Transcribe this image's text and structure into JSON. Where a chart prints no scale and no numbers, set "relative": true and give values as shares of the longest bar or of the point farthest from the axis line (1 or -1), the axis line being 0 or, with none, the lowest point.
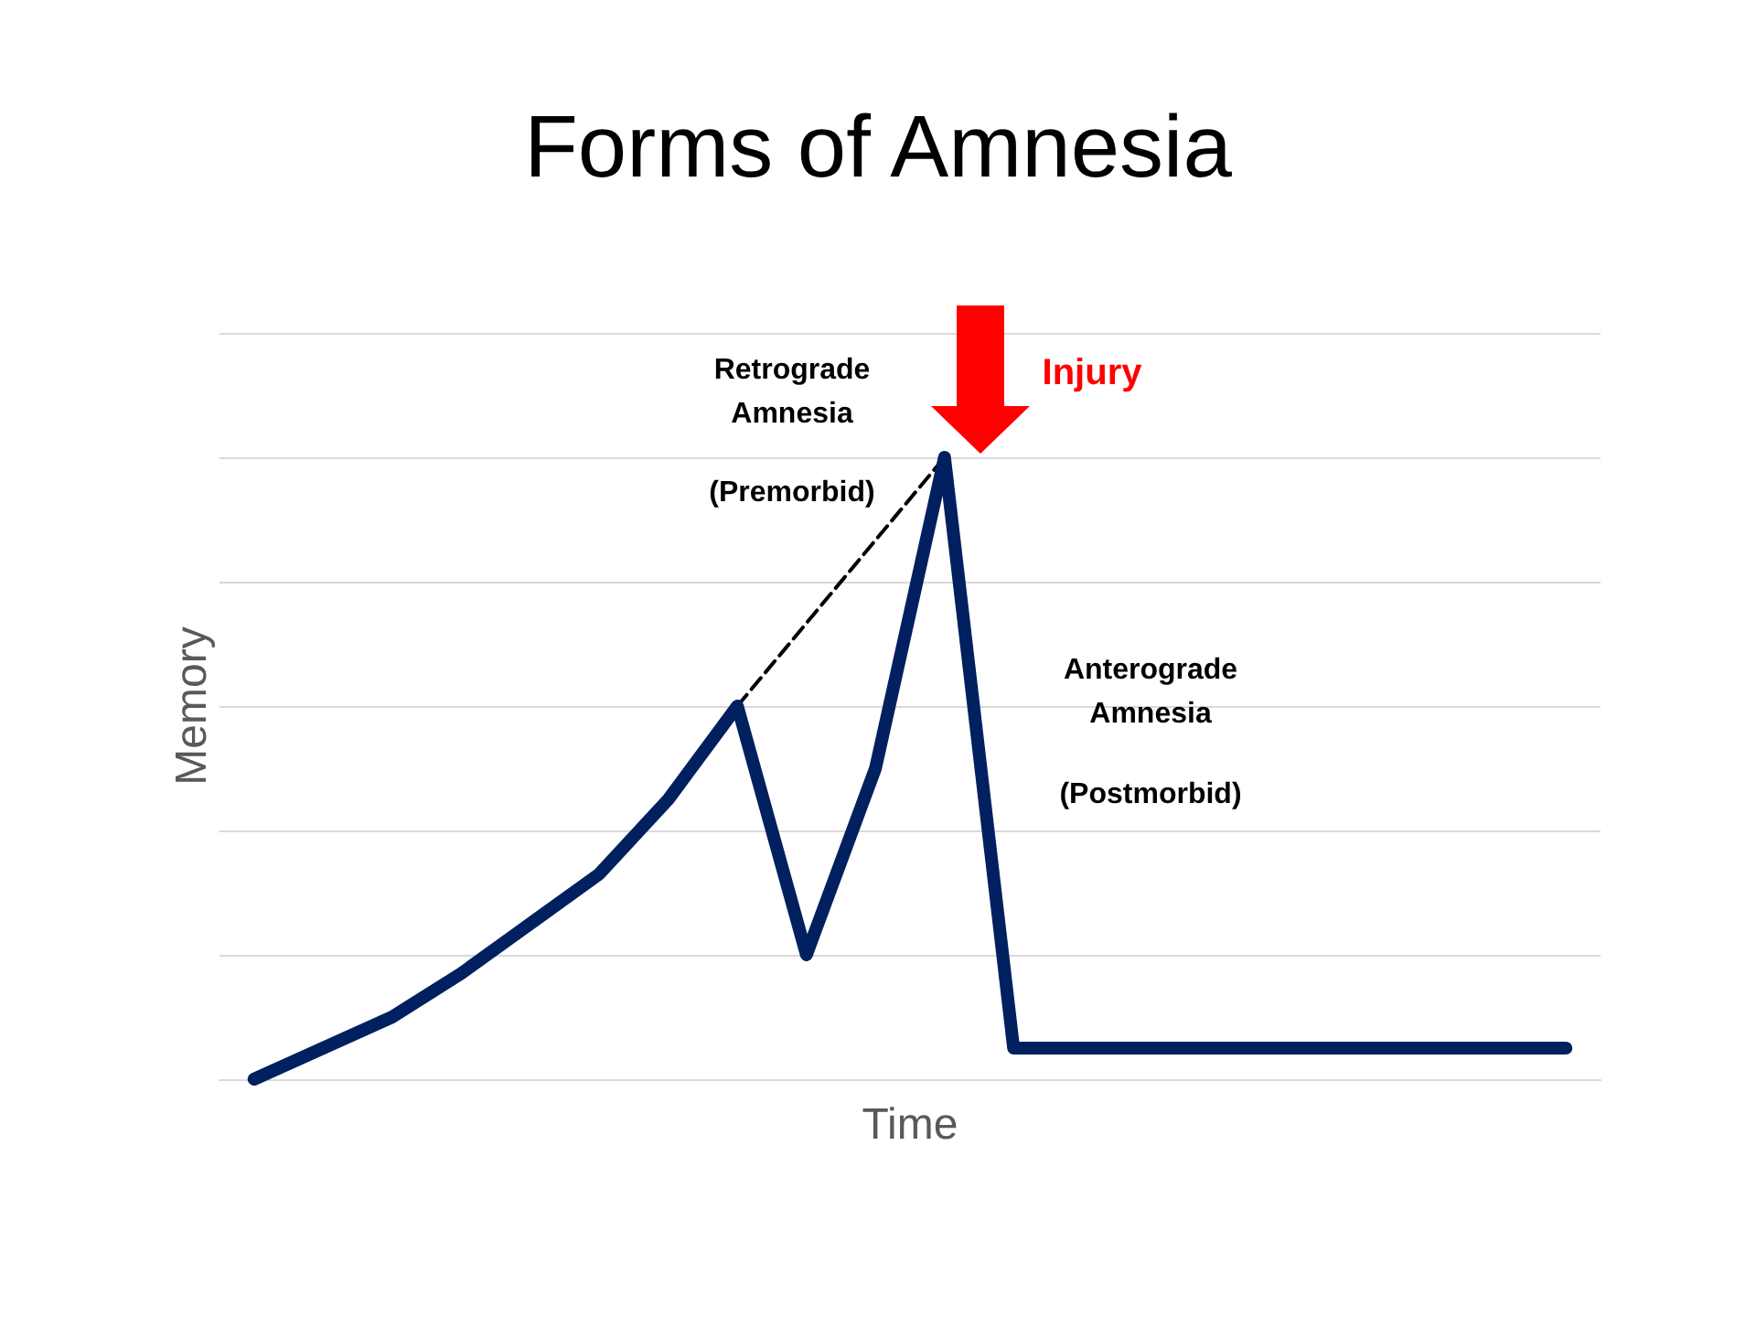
{
  "chart_data": {
    "type": "line",
    "title": "Forms of Amnesia",
    "xlabel": "Time",
    "ylabel": "Memory",
    "categories": [
      null,
      null,
      null,
      null,
      null,
      null,
      null,
      null,
      null,
      null,
      null,
      null,
      null,
      null,
      null,
      null,
      null,
      null,
      null,
      null
    ],
    "relative": true,
    "grid": "y",
    "marker": "none",
    "series": [
      {
        "color": "#002060",
        "line_style": "solid",
        "values": [
          0,
          0.05,
          0.1,
          0.17,
          0.25,
          0.33,
          0.45,
          0.6,
          0.2,
          0.5,
          1,
          0.05,
          0.05,
          0.05,
          0.05,
          0.05,
          0.05,
          0.05,
          0.05,
          0.05
        ]
      },
      {
        "color": "#000000",
        "line_style": "dashed",
        "values": [
          null,
          null,
          null,
          null,
          null,
          null,
          null,
          0.6,
          null,
          null,
          1,
          null,
          null,
          null,
          null,
          null,
          null,
          null,
          null,
          null
        ]
      }
    ],
    "annotations": [
      "Retrograde Amnesia",
      "(Premorbid)",
      "Injury",
      "Anterograde Amnesia",
      "(Postmorbid)"
    ]
  }
}
